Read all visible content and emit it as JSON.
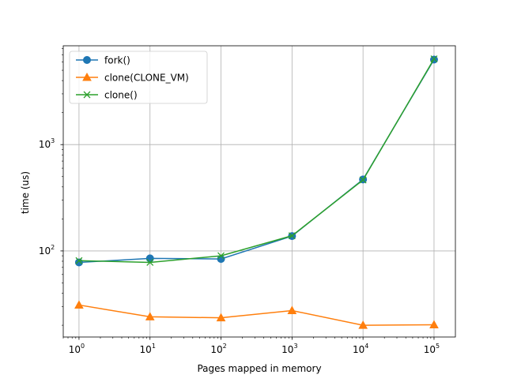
{
  "chart_data": {
    "type": "line",
    "xscale": "log",
    "yscale": "log",
    "xlabel": "Pages mapped in memory",
    "ylabel": "time (us)",
    "xlim": [
      0.6,
      200000
    ],
    "ylim": [
      15.5,
      8500
    ],
    "x": [
      1,
      10,
      100,
      1000,
      10000,
      100000
    ],
    "x_ticks": [
      {
        "value": 1,
        "base": "10",
        "exp": "0"
      },
      {
        "value": 10,
        "base": "10",
        "exp": "1"
      },
      {
        "value": 100,
        "base": "10",
        "exp": "2"
      },
      {
        "value": 1000,
        "base": "10",
        "exp": "3"
      },
      {
        "value": 10000,
        "base": "10",
        "exp": "4"
      },
      {
        "value": 100000,
        "base": "10",
        "exp": "5"
      }
    ],
    "y_ticks": [
      {
        "value": 100,
        "base": "10",
        "exp": "2"
      },
      {
        "value": 1000,
        "base": "10",
        "exp": "3"
      }
    ],
    "grid": true,
    "legend_position": "upper-left",
    "series": [
      {
        "name": "fork()",
        "color": "#1f77b4",
        "marker": "circle",
        "values": [
          78,
          85,
          84,
          138,
          470,
          6300
        ]
      },
      {
        "name": "clone(CLONE_VM)",
        "color": "#ff7f0e",
        "marker": "triangle",
        "values": [
          31,
          24,
          23.5,
          27.5,
          20,
          20.2
        ]
      },
      {
        "name": "clone()",
        "color": "#2ca02c",
        "marker": "x",
        "values": [
          81,
          78,
          90,
          139,
          465,
          6400
        ]
      }
    ]
  }
}
